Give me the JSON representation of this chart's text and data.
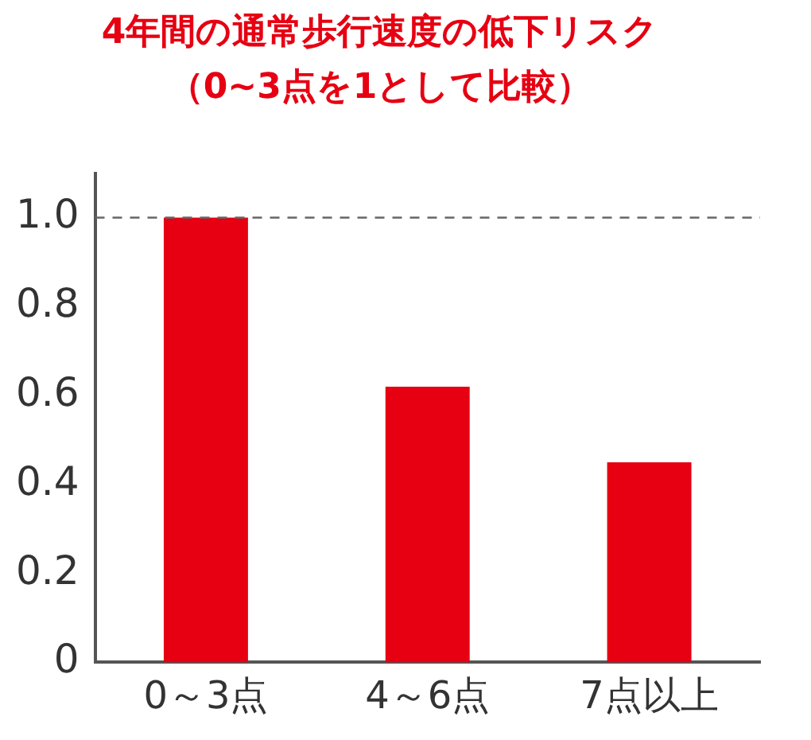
{
  "chart_data": {
    "type": "bar",
    "title": "4年間の通常歩行速度の低下リスク",
    "subtitle": "（0~3点を1として比較）",
    "categories": [
      "0～3点",
      "4～6点",
      "7点以上"
    ],
    "values": [
      1.0,
      0.62,
      0.45
    ],
    "color": "#e60012",
    "ylim": [
      0,
      1.1
    ],
    "yticks": [
      0,
      {
        "value": 0.2,
        "label": "0.2"
      },
      {
        "value": 0.4,
        "label": "0.4"
      },
      {
        "value": 0.6,
        "label": "0.6"
      },
      {
        "value": 0.8,
        "label": "0.8"
      },
      {
        "value": 1,
        "label": "1.0"
      }
    ],
    "ref_lines": [
      {
        "axis": "y",
        "value": 1,
        "color": "#666666",
        "line_style": "dashed"
      }
    ],
    "grid": false,
    "legend": false
  }
}
